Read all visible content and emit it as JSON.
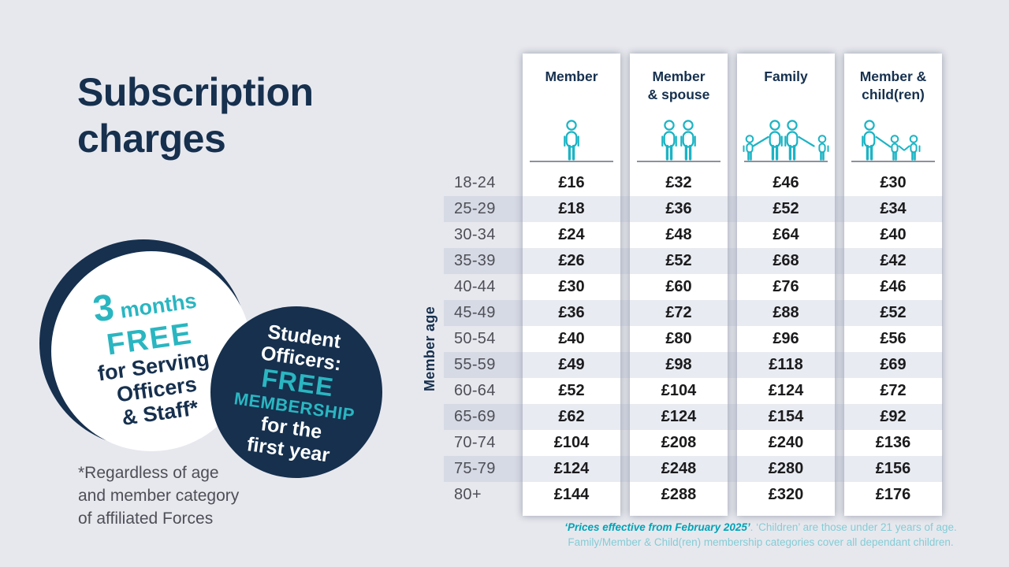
{
  "title": "Subscription charges",
  "badges": {
    "serving": {
      "big_number": "3",
      "word": "months",
      "free": "FREE",
      "lines": [
        "for Serving",
        "Officers",
        "& Staff*"
      ]
    },
    "student": {
      "top_lines": [
        "Student",
        "Officers:"
      ],
      "free": "FREE",
      "membership": "MEMBERSHIP",
      "bottom_lines": [
        "for the",
        "first year"
      ]
    }
  },
  "footnote_lines": [
    "*Regardless of age",
    "and member category",
    "of affiliated Forces"
  ],
  "table": {
    "axis_label": "Member age",
    "columns": [
      {
        "label_lines": [
          "Member"
        ],
        "icon": "member-icon"
      },
      {
        "label_lines": [
          "Member",
          "& spouse"
        ],
        "icon": "member-spouse-icon"
      },
      {
        "label_lines": [
          "Family"
        ],
        "icon": "family-icon"
      },
      {
        "label_lines": [
          "Member &",
          "child(ren)"
        ],
        "icon": "member-children-icon"
      }
    ],
    "rows": [
      {
        "age": "18-24",
        "prices": [
          "£16",
          "£32",
          "£46",
          "£30"
        ]
      },
      {
        "age": "25-29",
        "prices": [
          "£18",
          "£36",
          "£52",
          "£34"
        ]
      },
      {
        "age": "30-34",
        "prices": [
          "£24",
          "£48",
          "£64",
          "£40"
        ]
      },
      {
        "age": "35-39",
        "prices": [
          "£26",
          "£52",
          "£68",
          "£42"
        ]
      },
      {
        "age": "40-44",
        "prices": [
          "£30",
          "£60",
          "£76",
          "£46"
        ]
      },
      {
        "age": "45-49",
        "prices": [
          "£36",
          "£72",
          "£88",
          "£52"
        ]
      },
      {
        "age": "50-54",
        "prices": [
          "£40",
          "£80",
          "£96",
          "£56"
        ]
      },
      {
        "age": "55-59",
        "prices": [
          "£49",
          "£98",
          "£118",
          "£69"
        ]
      },
      {
        "age": "60-64",
        "prices": [
          "£52",
          "£104",
          "£124",
          "£72"
        ]
      },
      {
        "age": "65-69",
        "prices": [
          "£62",
          "£124",
          "£154",
          "£92"
        ]
      },
      {
        "age": "70-74",
        "prices": [
          "£104",
          "£208",
          "£240",
          "£136"
        ]
      },
      {
        "age": "75-79",
        "prices": [
          "£124",
          "£248",
          "£280",
          "£156"
        ]
      },
      {
        "age": "80+",
        "prices": [
          "£144",
          "£288",
          "£320",
          "£176"
        ]
      }
    ]
  },
  "footer": {
    "emphasis": "‘Prices effective from February 2025’",
    "line1_rest": ". ‘Children’ are those under 21 years of age.",
    "line2": "Family/Member & Child(ren) membership categories cover all dependant children."
  },
  "colors": {
    "bg": "#e7e8ee",
    "navy": "#16304e",
    "teal": "#2ab6c1",
    "icon_teal": "#1cb4c4",
    "footer_teal": "#00a3b6",
    "footer_teal_light": "#85ccd5",
    "age_gray": "#4e4f57",
    "price_black": "#1b1b1d"
  }
}
